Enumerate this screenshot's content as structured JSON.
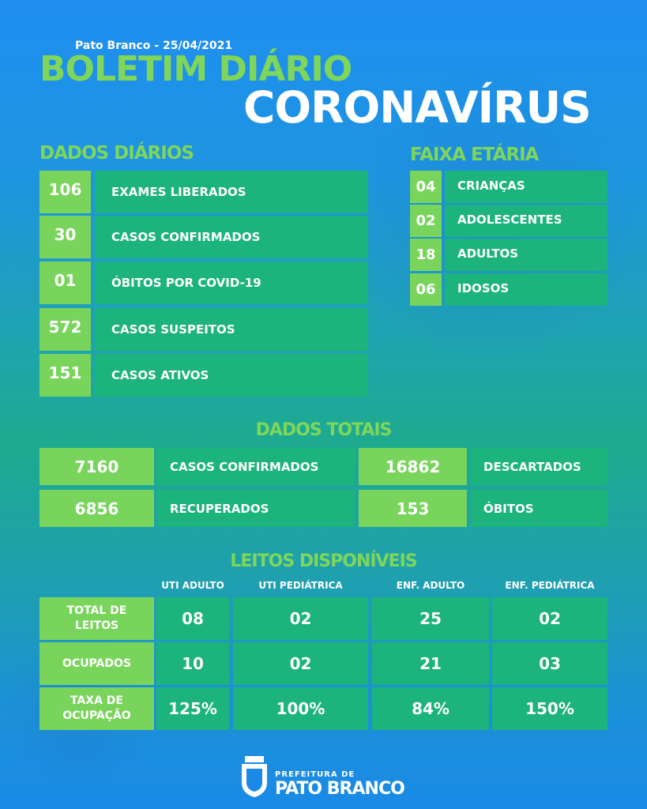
{
  "header": {
    "location_date": "Pato Branco -  25/04/2021",
    "title1": "BOLETIM DIÁRIO",
    "title2": "CORONAVÍRUS"
  },
  "daily": {
    "title": "DADOS DIÁRIOS",
    "items": [
      {
        "value": "106",
        "label": "EXAMES LIBERADOS"
      },
      {
        "value": "30",
        "label": "CASOS CONFIRMADOS"
      },
      {
        "value": "01",
        "label": "ÓBITOS POR COVID-19"
      },
      {
        "value": "572",
        "label": "CASOS SUSPEITOS"
      },
      {
        "value": "151",
        "label": "CASOS ATIVOS"
      }
    ]
  },
  "age": {
    "title": "FAIXA ETÁRIA",
    "items": [
      {
        "value": "04",
        "label": "CRIANÇAS"
      },
      {
        "value": "02",
        "label": "ADOLESCENTES"
      },
      {
        "value": "18",
        "label": "ADULTOS"
      },
      {
        "value": "06",
        "label": "IDOSOS"
      }
    ]
  },
  "totals": {
    "title": "DADOS TOTAIS",
    "items": [
      {
        "value": "7160",
        "label": "CASOS CONFIRMADOS"
      },
      {
        "value": "16862",
        "label": "DESCARTADOS"
      },
      {
        "value": "6856",
        "label": "RECUPERADOS"
      },
      {
        "value": "153",
        "label": "ÓBITOS"
      }
    ]
  },
  "beds": {
    "title": "LEITOS DISPONÍVEIS",
    "columns": [
      "UTI ADULTO",
      "UTI PEDIÁTRICA",
      "ENF. ADULTO",
      "ENF. PEDIÁTRICA"
    ],
    "rows": [
      {
        "label": "TOTAL DE LEITOS",
        "values": [
          "08",
          "02",
          "25",
          "02"
        ]
      },
      {
        "label": "OCUPADOS",
        "values": [
          "10",
          "02",
          "21",
          "03"
        ]
      },
      {
        "label": "TAXA DE OCUPAÇÃO",
        "values": [
          "125%",
          "100%",
          "84%",
          "150%"
        ]
      }
    ]
  },
  "footer": {
    "logo_small": "PREFEITURA DE",
    "logo_big": "PATO BRANCO"
  },
  "colors": {
    "green": "#79d45c",
    "teal": "#1cb37d",
    "title_green": "#7fd65a"
  }
}
